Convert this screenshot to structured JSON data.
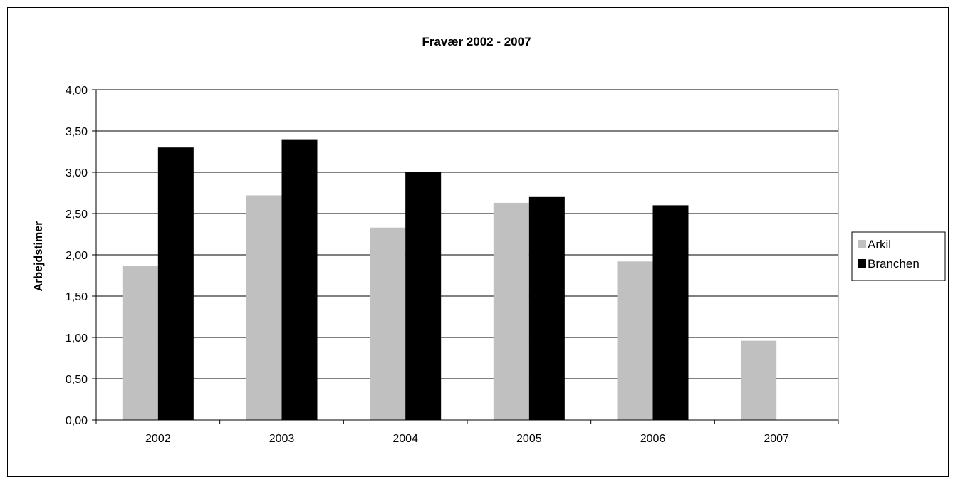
{
  "chart_data": {
    "type": "bar",
    "title": "Fravær 2002 - 2007",
    "xlabel": "",
    "ylabel": "Arbejdstimer",
    "categories": [
      "2002",
      "2003",
      "2004",
      "2005",
      "2006",
      "2007"
    ],
    "series": [
      {
        "name": "Arkil",
        "color": "#c0c0c0",
        "values": [
          1.87,
          2.72,
          2.33,
          2.63,
          1.92,
          0.96
        ]
      },
      {
        "name": "Branchen",
        "color": "#000000",
        "values": [
          3.3,
          3.4,
          3.0,
          2.7,
          2.6,
          null
        ]
      }
    ],
    "ylim": [
      0,
      4
    ],
    "yticks": [
      "0,00",
      "0,50",
      "1,00",
      "1,50",
      "2,00",
      "2,50",
      "3,00",
      "3,50",
      "4,00"
    ],
    "grid": true,
    "legend": "right"
  }
}
